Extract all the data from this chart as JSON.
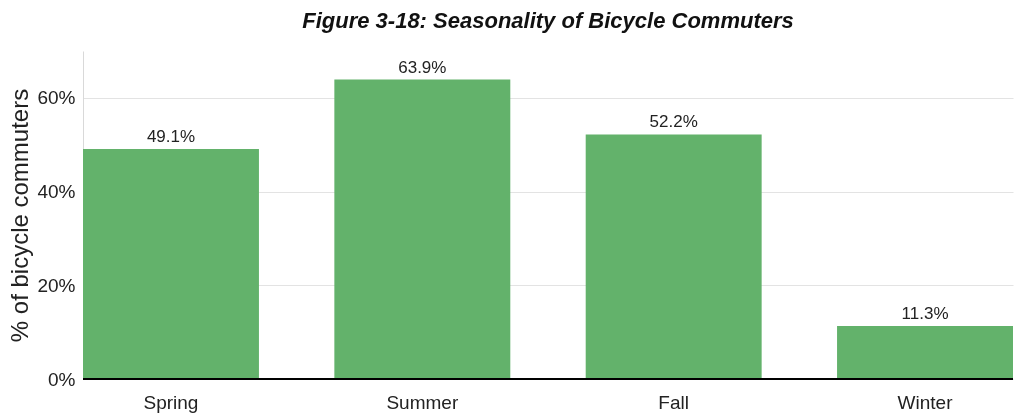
{
  "chart_data": {
    "type": "bar",
    "title": "Figure 3-18: Seasonality of Bicycle Commuters",
    "ylabel": "% of bicycle commuters",
    "categories": [
      "Spring",
      "Summer",
      "Fall",
      "Winter"
    ],
    "values": [
      49.1,
      63.9,
      52.2,
      11.3
    ],
    "value_labels": [
      "49.1%",
      "63.9%",
      "52.2%",
      "11.3%"
    ],
    "color": "#63b26b",
    "ylim": [
      0,
      70
    ],
    "yticks": [
      {
        "value": 0,
        "label": "0%"
      },
      {
        "value": 20,
        "label": "20%"
      },
      {
        "value": 40,
        "label": "40%"
      },
      {
        "value": 60,
        "label": "60%"
      }
    ],
    "grid": "y"
  }
}
